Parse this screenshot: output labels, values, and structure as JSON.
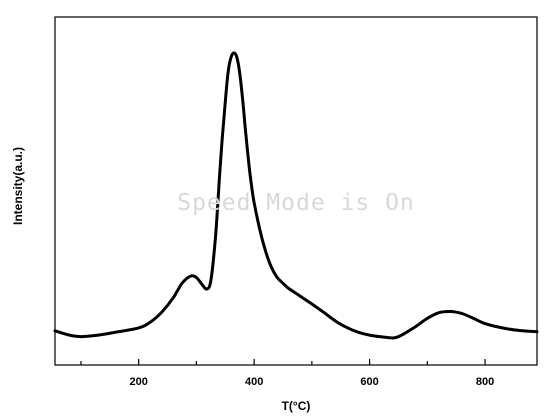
{
  "chart_data": {
    "type": "line",
    "xlabel": "T(°C)",
    "ylabel": "Intensity(a.u.)",
    "xlim": [
      55,
      890
    ],
    "ylim": [
      0,
      1
    ],
    "x_ticks": [
      200,
      400,
      600,
      800
    ],
    "x_tick_labels": [
      "200",
      "400",
      "600",
      "800"
    ],
    "y_ticks_shown": false,
    "grid": false,
    "legend": "none",
    "series_color": "#000000",
    "series": [
      {
        "x": [
          55,
          80,
          100,
          130,
          160,
          200,
          220,
          240,
          260,
          275,
          290,
          300,
          310,
          318,
          325,
          333,
          340,
          345,
          350,
          355,
          360,
          365,
          370,
          375,
          380,
          385,
          390,
          395,
          400,
          410,
          420,
          430,
          440,
          450,
          460,
          480,
          500,
          520,
          540,
          560,
          580,
          600,
          620,
          640,
          650,
          660,
          680,
          700,
          720,
          740,
          760,
          780,
          800,
          830,
          860,
          890
        ],
        "y": [
          0.025,
          0.01,
          0.005,
          0.01,
          0.02,
          0.035,
          0.055,
          0.09,
          0.14,
          0.19,
          0.215,
          0.21,
          0.185,
          0.17,
          0.2,
          0.35,
          0.56,
          0.7,
          0.82,
          0.925,
          0.975,
          0.99,
          0.975,
          0.92,
          0.83,
          0.72,
          0.62,
          0.535,
          0.47,
          0.375,
          0.3,
          0.245,
          0.21,
          0.19,
          0.172,
          0.145,
          0.118,
          0.09,
          0.06,
          0.037,
          0.02,
          0.01,
          0.004,
          0.0,
          0.005,
          0.015,
          0.04,
          0.068,
          0.088,
          0.092,
          0.085,
          0.068,
          0.05,
          0.035,
          0.026,
          0.022
        ]
      }
    ]
  },
  "watermark": "Speed Mode is On"
}
